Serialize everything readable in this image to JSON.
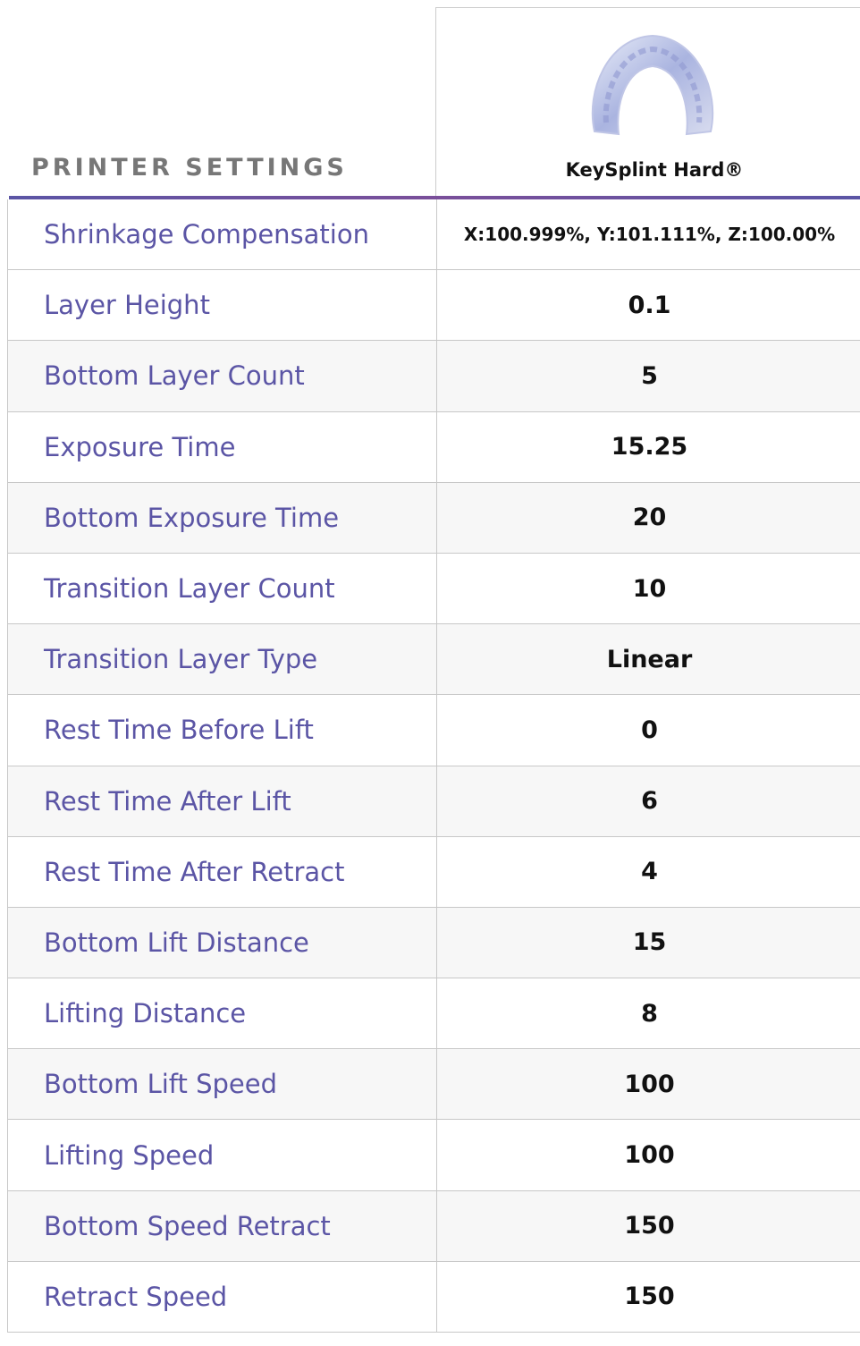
{
  "header": {
    "title": "PRINTER SETTINGS",
    "product": "KeySplint Hard®"
  },
  "table": {
    "rows": [
      [
        "Shrinkage Compensation",
        "X:100.999%, Y:101.111%, Z:100.00%"
      ],
      [
        "Layer Height",
        "0.1"
      ],
      [
        "Bottom Layer Count",
        "5"
      ],
      [
        "Exposure Time",
        "15.25"
      ],
      [
        "Bottom Exposure Time",
        "20"
      ],
      [
        "Transition Layer Count",
        "10"
      ],
      [
        "Transition Layer Type",
        "Linear"
      ],
      [
        "Rest Time Before Lift",
        "0"
      ],
      [
        "Rest Time After Lift",
        "6"
      ],
      [
        "Rest Time After Retract",
        "4"
      ],
      [
        "Bottom Lift Distance",
        "15"
      ],
      [
        "Lifting Distance",
        "8"
      ],
      [
        "Bottom Lift Speed",
        "100"
      ],
      [
        "Lifting Speed",
        "100"
      ],
      [
        "Bottom Speed Retract",
        "150"
      ],
      [
        "Retract Speed",
        "150"
      ]
    ]
  }
}
